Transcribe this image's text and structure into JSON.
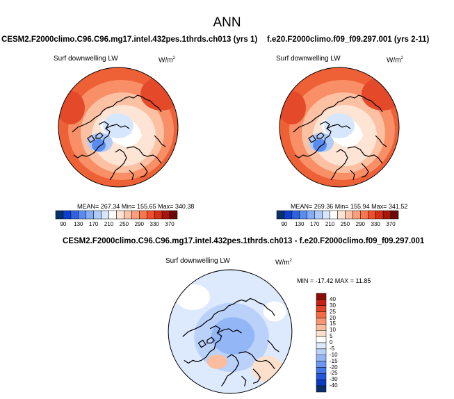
{
  "title": "ANN",
  "colors": {
    "scale_abs": [
      "#08306b",
      "#0c3fd0",
      "#2f62e0",
      "#5a8bef",
      "#86acf5",
      "#b0cbf9",
      "#d6e6fc",
      "#ffffff",
      "#fde3d3",
      "#fcc3a8",
      "#fb9e7c",
      "#f7774f",
      "#ef4f2c",
      "#d42e16",
      "#a8160b",
      "#6e0707"
    ],
    "scale_diff": [
      "#08306b",
      "#0a3ac0",
      "#2455dc",
      "#4577e8",
      "#6b98f2",
      "#93b6f7",
      "#bad1fa",
      "#dde9fd",
      "#ffffff",
      "#fde0cc",
      "#fbbd9d",
      "#f99670",
      "#f46c45",
      "#e34326",
      "#c32313",
      "#8d0c07"
    ]
  },
  "panels": [
    {
      "title": "CESM2.F2000climo.C96.C96.mg17.intel.432pes.1thrds.ch013 (yrs 1)",
      "variable": "Surf downwelling LW",
      "units": "W/m",
      "units_exp": "2",
      "stats": "MEAN= 267.34  Min= 155.65  Max= 340.38",
      "ticks": [
        "90",
        "130",
        "170",
        "210",
        "250",
        "290",
        "330",
        "370"
      ]
    },
    {
      "title": "f.e20.F2000climo.f09_f09.297.001 (yrs 2-11)",
      "variable": "Surf downwelling LW",
      "units": "W/m",
      "units_exp": "2",
      "stats": "MEAN= 269.36  Min= 155.94  Max= 341.52",
      "ticks": [
        "90",
        "130",
        "170",
        "210",
        "250",
        "290",
        "330",
        "370"
      ]
    }
  ],
  "diff_panel": {
    "title": "CESM2.F2000climo.C96.C96.mg17.intel.432pes.1thrds.ch013 - f.e20.F2000climo.f09_f09.297.001",
    "variable": "Surf downwelling LW",
    "units": "W/m",
    "units_exp": "2",
    "stats": "MIN = -17.42 MAX =  11.85",
    "ticks": [
      "40",
      "30",
      "25",
      "20",
      "15",
      "10",
      "5",
      "0",
      "-5",
      "-10",
      "-15",
      "-20",
      "-25",
      "-30",
      "-40"
    ]
  }
}
